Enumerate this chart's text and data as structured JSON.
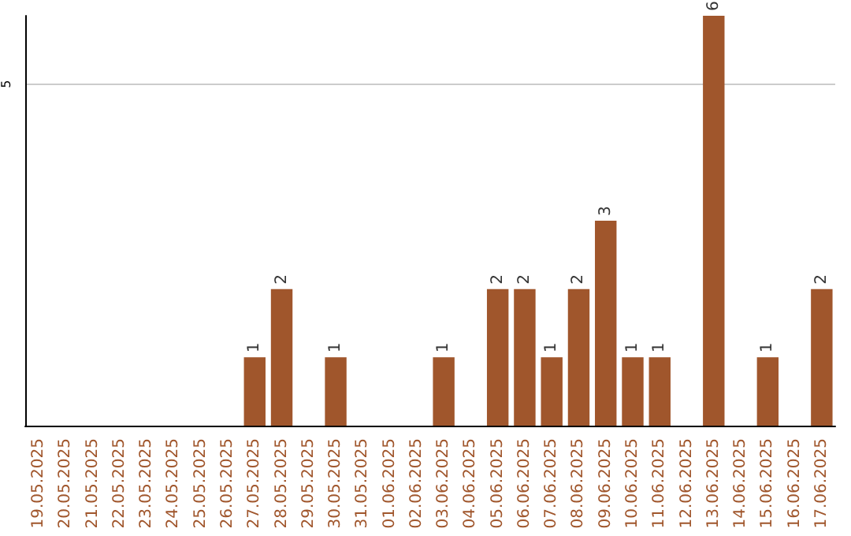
{
  "chart_data": {
    "type": "bar",
    "categories": [
      "19.05.2025",
      "20.05.2025",
      "21.05.2025",
      "22.05.2025",
      "23.05.2025",
      "24.05.2025",
      "25.05.2025",
      "26.05.2025",
      "27.05.2025",
      "28.05.2025",
      "29.05.2025",
      "30.05.2025",
      "31.05.2025",
      "01.06.2025",
      "02.06.2025",
      "03.06.2025",
      "04.06.2025",
      "05.06.2025",
      "06.06.2025",
      "07.06.2025",
      "08.06.2025",
      "09.06.2025",
      "10.06.2025",
      "11.06.2025",
      "12.06.2025",
      "13.06.2025",
      "14.06.2025",
      "15.06.2025",
      "16.06.2025",
      "17.06.2025"
    ],
    "values": [
      null,
      null,
      null,
      null,
      null,
      null,
      null,
      null,
      1,
      2,
      null,
      1,
      null,
      null,
      null,
      1,
      null,
      2,
      2,
      1,
      2,
      3,
      1,
      1,
      null,
      6,
      null,
      1,
      null,
      2
    ],
    "color": "#a0562c",
    "ylim": [
      0,
      6
    ],
    "yticks": [
      5
    ],
    "grid": "y",
    "data_labels": true
  }
}
